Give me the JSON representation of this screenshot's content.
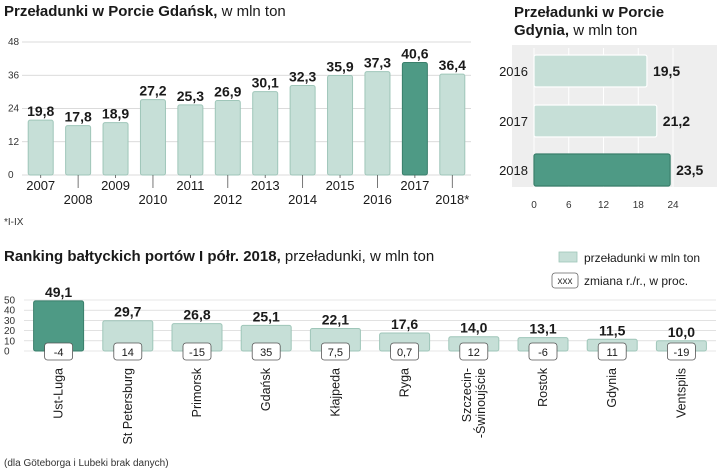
{
  "colors": {
    "bar": "#c6dfd7",
    "bar_stroke": "#9fc6b9",
    "highlight": "#4e9a85",
    "highlight_stroke": "#3a7f6b",
    "grid": "#cfcfcf",
    "panel": "#eeeeee"
  },
  "chart_data": [
    {
      "type": "bar",
      "title": "Przeładunki w Porcie Gdańsk,",
      "subtitle": "w mln ton",
      "categories": [
        "2007",
        "2008",
        "2009",
        "2010",
        "2011",
        "2012",
        "2013",
        "2014",
        "2015",
        "2016",
        "2017",
        "2018*"
      ],
      "values": [
        19.8,
        17.8,
        18.9,
        27.2,
        25.3,
        26.9,
        30.1,
        32.3,
        35.9,
        37.3,
        40.6,
        36.4
      ],
      "value_labels": [
        "19,8",
        "17,8",
        "18,9",
        "27,2",
        "25,3",
        "26,9",
        "30,1",
        "32,3",
        "35,9",
        "37,3",
        "40,6",
        "36,4"
      ],
      "highlight_index": 10,
      "ylim": [
        0,
        48
      ],
      "yticks": [
        "0",
        "12",
        "24",
        "36",
        "48"
      ],
      "footnote": "*I-IX"
    },
    {
      "type": "bar",
      "orientation": "horizontal",
      "title": "Przeładunki w Porcie",
      "title2": "Gdynia,",
      "subtitle": "w mln ton",
      "categories": [
        "2016",
        "2017",
        "2018"
      ],
      "values": [
        19.5,
        21.2,
        23.5
      ],
      "value_labels": [
        "19,5",
        "21,2",
        "23,5"
      ],
      "highlight_index": 2,
      "xlim": [
        0,
        24
      ],
      "xticks": [
        "0",
        "6",
        "12",
        "18",
        "24"
      ]
    },
    {
      "type": "bar",
      "title": "Ranking bałtyckich portów I półr. 2018,",
      "subtitle": "przeładunki, w mln ton",
      "categories": [
        "Ust-Luga",
        "St Petersburg",
        "Primorsk",
        "Gdańsk",
        "Kłajpeda",
        "Ryga",
        "Szczecin-\n-Świnoujście",
        "Rostok",
        "Gdynia",
        "Ventspils"
      ],
      "values": [
        49.1,
        29.7,
        26.8,
        25.1,
        22.1,
        17.6,
        14.0,
        13.1,
        11.5,
        10.0
      ],
      "value_labels": [
        "49,1",
        "29,7",
        "26,8",
        "25,1",
        "22,1",
        "17,6",
        "14,0",
        "13,1",
        "11,5",
        "10,0"
      ],
      "changes": [
        "-4",
        "14",
        "-15",
        "35",
        "7,5",
        "0,7",
        "12",
        "-6",
        "11",
        "-19"
      ],
      "highlight_index": 0,
      "ylim": [
        0,
        50
      ],
      "yticks": [
        "0",
        "10",
        "20",
        "30",
        "40",
        "50"
      ],
      "legend": {
        "bar_label": "przeładunki w mln ton",
        "box_sample": "xxx",
        "box_label": "zmiana r./r., w proc."
      },
      "footnote": "(dla Göteborga i Lubeki brak danych)"
    }
  ]
}
